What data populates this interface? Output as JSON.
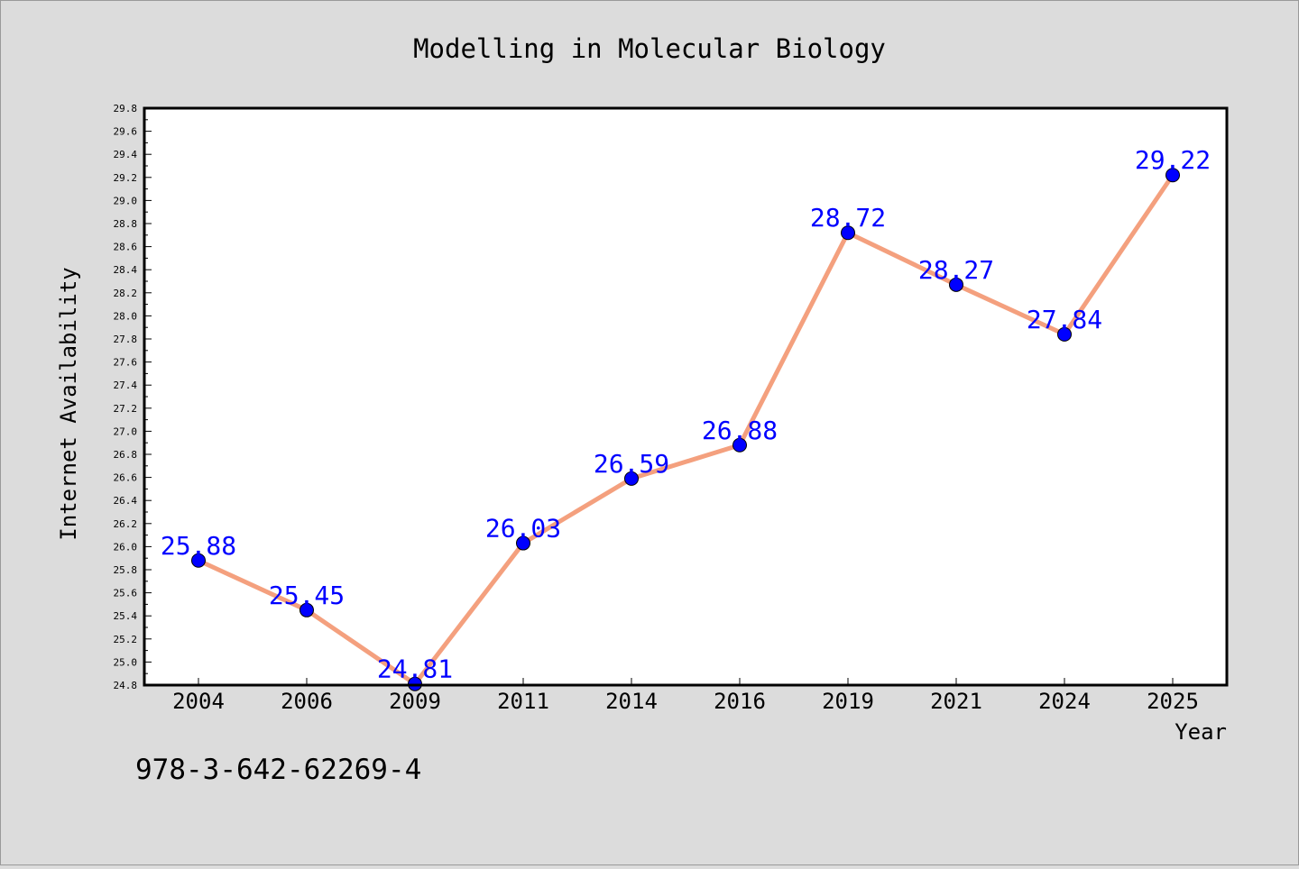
{
  "chart_data": {
    "type": "line",
    "title": "Modelling in Molecular Biology",
    "xlabel": "Year",
    "ylabel": "Internet Availability",
    "categories": [
      "2004",
      "2006",
      "2009",
      "2011",
      "2014",
      "2016",
      "2019",
      "2021",
      "2024",
      "2025"
    ],
    "series": [
      {
        "values": [
          25.88,
          25.45,
          24.81,
          26.03,
          26.59,
          26.88,
          28.72,
          28.27,
          27.84,
          29.22
        ],
        "data_labels": [
          "25.88",
          "25.45",
          "24.81",
          "26.03",
          "26.59",
          "26.88",
          "28.72",
          "28.27",
          "27.84",
          "29.22"
        ]
      }
    ],
    "ylim": [
      24.8,
      29.8
    ],
    "yticks": [
      "24.8",
      "25.0",
      "25.2",
      "25.4",
      "25.6",
      "25.8",
      "26.0",
      "26.2",
      "26.4",
      "26.6",
      "26.8",
      "27.0",
      "27.2",
      "27.4",
      "27.6",
      "27.8",
      "28.0",
      "28.2",
      "28.4",
      "28.6",
      "28.8",
      "29.0",
      "29.2",
      "29.4",
      "29.6",
      "29.8"
    ],
    "grid": false,
    "annotation": "978-3-642-62269-4",
    "colors": {
      "background": "#dcdcdc",
      "plot_background": "#ffffff",
      "line": "#f4a07e",
      "marker": "#0000ff",
      "data_label": "#0000ff",
      "text": "#000000"
    }
  }
}
